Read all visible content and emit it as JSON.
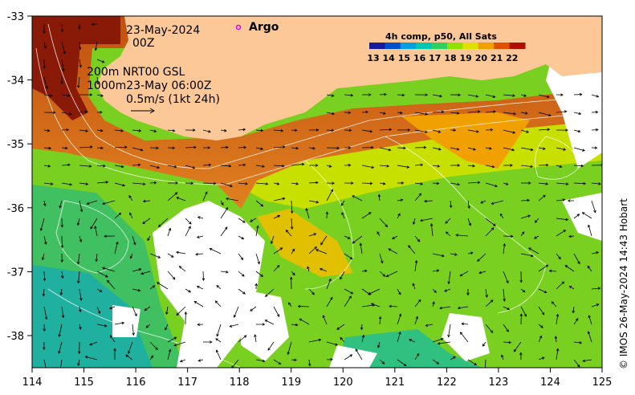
{
  "map": {
    "date_line1": "23-May-2024",
    "date_line2": "00Z",
    "argo_label": "Argo",
    "depth_line1": "200m  NRT00 GSL",
    "depth_line2": "1000m23-May 06:00Z",
    "scale_text": "0.5m/s (1kt 24h)",
    "colorbar_title": "4h comp, p50, All Sats",
    "colorbar_values": [
      "13",
      "14",
      "15",
      "16",
      "17",
      "18",
      "19",
      "20",
      "21",
      "22"
    ],
    "colorbar_colors": [
      "#1a1a9c",
      "#0050d0",
      "#00a0e0",
      "#00c8b0",
      "#30d060",
      "#90e000",
      "#e0e000",
      "#f0a000",
      "#e05000",
      "#b01000"
    ],
    "credit": "© IMOS 26-May-2024 14:43 Hobart",
    "x_ticks": [
      "114",
      "115",
      "116",
      "117",
      "118",
      "119",
      "120",
      "121",
      "122",
      "123",
      "124",
      "125"
    ],
    "y_ticks": [
      "-33",
      "-34",
      "-35",
      "-36",
      "-37",
      "-38"
    ],
    "land_color": "#fcc898",
    "argo_color": "#e000e0"
  }
}
